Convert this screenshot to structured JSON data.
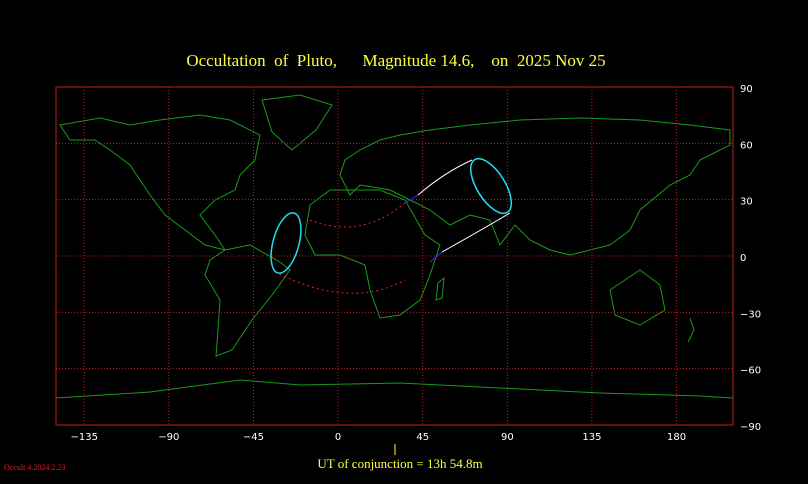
{
  "title": "Occultation  of  Pluto,      Magnitude 14.6,    on  2025 Nov 25",
  "footer": {
    "conjunction": "UT of conjunction = 13h 54.8m",
    "version": "Occult 4.2024.2.23"
  },
  "map": {
    "xlim": [
      -150,
      210
    ],
    "ylim": [
      -90,
      90
    ],
    "xticks": [
      {
        "value": -135,
        "label": "−135"
      },
      {
        "value": -90,
        "label": "−90"
      },
      {
        "value": -45,
        "label": "−45"
      },
      0,
      45,
      90,
      135,
      180
    ],
    "yticks": [
      90,
      60,
      30,
      0,
      {
        "value": -30,
        "label": "−30"
      },
      {
        "value": -60,
        "label": "−60"
      },
      {
        "value": -90,
        "label": "−90"
      }
    ],
    "grid": true
  }
}
